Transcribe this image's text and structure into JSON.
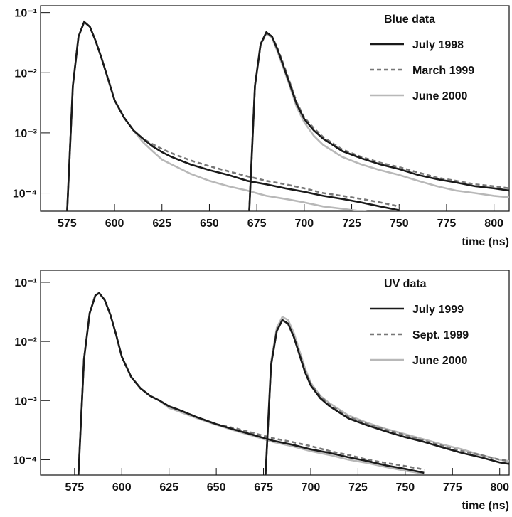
{
  "chart_data": [
    {
      "type": "line",
      "legend_title": "Blue data",
      "xlabel": "time (ns)",
      "log_y": true,
      "legend": "upper right",
      "xlim": [
        561,
        808
      ],
      "ylim": [
        5e-05,
        0.13
      ],
      "xticks": [
        575,
        600,
        625,
        650,
        675,
        700,
        725,
        750,
        775,
        800
      ],
      "yticks": [
        {
          "value": 0.0001,
          "label": "10⁻⁴"
        },
        {
          "value": 0.001,
          "label": "10⁻³"
        },
        {
          "value": 0.01,
          "label": "10⁻²"
        },
        {
          "value": 0.1,
          "label": "10⁻¹"
        }
      ],
      "x": [
        575,
        578,
        581,
        584,
        587,
        590,
        593,
        596,
        600,
        605,
        610,
        615,
        620,
        625,
        630,
        640,
        650,
        660,
        670,
        680,
        690,
        700,
        710,
        720,
        730,
        740,
        750,
        null,
        671,
        674,
        677,
        680,
        683,
        686,
        689,
        692,
        696,
        700,
        705,
        710,
        720,
        730,
        740,
        750,
        760,
        770,
        780,
        790,
        800,
        808
      ],
      "series": [
        {
          "name": "July 1998",
          "color": "#1a1a1a",
          "dashed": false,
          "values": [
            5e-05,
            0.006,
            0.04,
            0.07,
            0.058,
            0.034,
            0.018,
            0.009,
            0.0035,
            0.0018,
            0.0011,
            0.0008,
            0.0006,
            0.00048,
            0.0004,
            0.0003,
            0.00024,
            0.0002,
            0.00016,
            0.00014,
            0.00012,
            0.000105,
            9e-05,
            8e-05,
            7e-05,
            6e-05,
            5.2e-05,
            null,
            5e-05,
            0.006,
            0.03,
            0.047,
            0.04,
            0.024,
            0.013,
            0.007,
            0.003,
            0.0017,
            0.0011,
            0.0008,
            0.0005,
            0.00038,
            0.0003,
            0.00025,
            0.0002,
            0.00017,
            0.00015,
            0.00013,
            0.00012,
            0.00011
          ]
        },
        {
          "name": "March 1999",
          "color": "#777777",
          "dashed": true,
          "values": [
            5e-05,
            0.006,
            0.04,
            0.07,
            0.058,
            0.034,
            0.018,
            0.009,
            0.0035,
            0.0018,
            0.0011,
            0.0008,
            0.00065,
            0.00054,
            0.00046,
            0.00035,
            0.00028,
            0.00023,
            0.00019,
            0.00016,
            0.00014,
            0.00012,
            0.0001,
            9e-05,
            8e-05,
            7e-05,
            6e-05,
            null,
            5e-05,
            0.006,
            0.029,
            0.046,
            0.04,
            0.025,
            0.014,
            0.0075,
            0.0032,
            0.0018,
            0.0012,
            0.00085,
            0.00053,
            0.0004,
            0.00032,
            0.00027,
            0.00022,
            0.00018,
            0.00016,
            0.00014,
            0.00013,
            0.00012
          ]
        },
        {
          "name": "June 2000",
          "color": "#b8b8b8",
          "dashed": false,
          "values": [
            5e-05,
            0.006,
            0.04,
            0.07,
            0.058,
            0.034,
            0.018,
            0.009,
            0.0035,
            0.0018,
            0.0011,
            0.0007,
            0.0005,
            0.00036,
            0.0003,
            0.00021,
            0.00016,
            0.00013,
            0.00011,
            9e-05,
            8e-05,
            7e-05,
            6e-05,
            5.5e-05,
            5e-05,
            4.5e-05,
            4e-05,
            null,
            5e-05,
            0.006,
            0.03,
            0.045,
            0.038,
            0.022,
            0.012,
            0.0065,
            0.0027,
            0.0015,
            0.0009,
            0.00063,
            0.0004,
            0.0003,
            0.00024,
            0.0002,
            0.00016,
            0.00013,
            0.00011,
            0.0001,
            9e-05,
            8.5e-05
          ]
        }
      ]
    },
    {
      "type": "line",
      "legend_title": "UV data",
      "xlabel": "time (ns)",
      "log_y": true,
      "legend": "upper right",
      "xlim": [
        557,
        805
      ],
      "ylim": [
        5.5e-05,
        0.16
      ],
      "xticks": [
        575,
        600,
        625,
        650,
        675,
        700,
        725,
        750,
        775,
        800
      ],
      "yticks": [
        {
          "value": 0.0001,
          "label": "10⁻⁴"
        },
        {
          "value": 0.001,
          "label": "10⁻³"
        },
        {
          "value": 0.01,
          "label": "10⁻²"
        },
        {
          "value": 0.1,
          "label": "10⁻¹"
        }
      ],
      "x": [
        577,
        580,
        583,
        586,
        588,
        591,
        594,
        597,
        600,
        605,
        610,
        615,
        620,
        625,
        630,
        640,
        650,
        660,
        670,
        680,
        690,
        700,
        710,
        720,
        730,
        740,
        750,
        760,
        null,
        676,
        679,
        682,
        685,
        688,
        691,
        694,
        697,
        700,
        705,
        710,
        720,
        730,
        740,
        750,
        760,
        770,
        780,
        790,
        800,
        805
      ],
      "series": [
        {
          "name": "July 1999",
          "color": "#1a1a1a",
          "dashed": false,
          "values": [
            5e-05,
            0.005,
            0.03,
            0.06,
            0.066,
            0.05,
            0.028,
            0.013,
            0.0055,
            0.0025,
            0.0016,
            0.0012,
            0.001,
            0.0008,
            0.0007,
            0.00052,
            0.0004,
            0.00032,
            0.00026,
            0.00021,
            0.00018,
            0.00015,
            0.00013,
            0.00011,
            9.5e-05,
            8e-05,
            7e-05,
            6e-05,
            null,
            5e-05,
            0.004,
            0.015,
            0.023,
            0.02,
            0.012,
            0.006,
            0.003,
            0.0018,
            0.0011,
            0.0008,
            0.0005,
            0.00038,
            0.0003,
            0.00024,
            0.0002,
            0.00016,
            0.00013,
            0.00011,
            9e-05,
            8.5e-05
          ]
        },
        {
          "name": "Sept. 1999",
          "color": "#777777",
          "dashed": true,
          "values": [
            5e-05,
            0.005,
            0.03,
            0.06,
            0.066,
            0.05,
            0.028,
            0.013,
            0.0055,
            0.0025,
            0.0016,
            0.0012,
            0.001,
            0.0008,
            0.0007,
            0.00052,
            0.0004,
            0.00034,
            0.00028,
            0.00023,
            0.0002,
            0.00017,
            0.00014,
            0.00012,
            0.0001,
            8.8e-05,
            7.8e-05,
            6.8e-05,
            null,
            5e-05,
            0.004,
            0.015,
            0.023,
            0.02,
            0.012,
            0.0062,
            0.0032,
            0.0019,
            0.0012,
            0.00085,
            0.00053,
            0.0004,
            0.00032,
            0.00026,
            0.00021,
            0.00017,
            0.00014,
            0.00012,
            0.0001,
            9.5e-05
          ]
        },
        {
          "name": "June 2000",
          "color": "#b8b8b8",
          "dashed": false,
          "values": [
            5e-05,
            0.005,
            0.03,
            0.06,
            0.066,
            0.05,
            0.028,
            0.013,
            0.0055,
            0.0025,
            0.0016,
            0.0012,
            0.001,
            0.00075,
            0.00066,
            0.0005,
            0.00039,
            0.00031,
            0.00025,
            0.0002,
            0.00017,
            0.00014,
            0.00012,
            0.0001,
            8.8e-05,
            7.5e-05,
            6.5e-05,
            5.8e-05,
            null,
            5e-05,
            0.0045,
            0.017,
            0.026,
            0.023,
            0.014,
            0.007,
            0.0035,
            0.002,
            0.0012,
            0.0009,
            0.00056,
            0.00042,
            0.00033,
            0.00027,
            0.00022,
            0.00018,
            0.00015,
            0.00012,
            0.0001,
            9.5e-05
          ]
        }
      ]
    }
  ]
}
